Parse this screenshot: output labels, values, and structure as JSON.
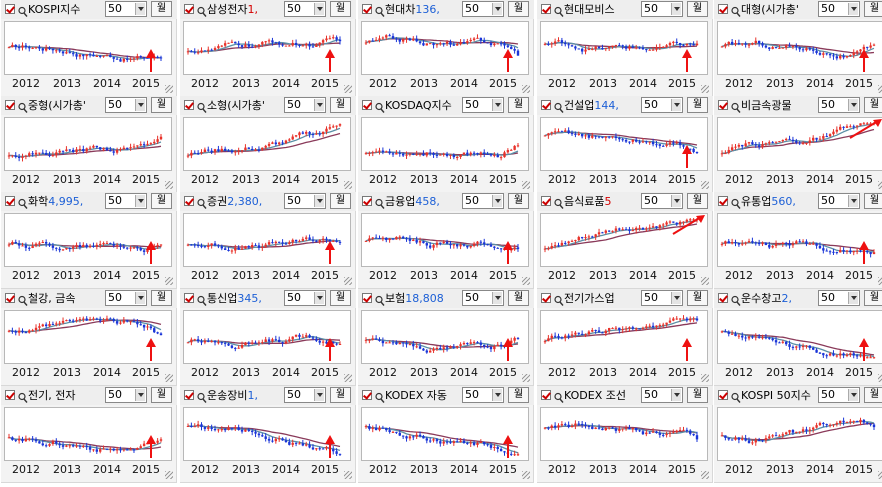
{
  "panels": [
    {
      "name": "KOSPI지수",
      "price": "",
      "price_color": "",
      "period": "50",
      "period_unit": "월",
      "trend": 0.1,
      "arrow": true
    },
    {
      "name": "삼성전자",
      "price": "1,",
      "price_color": "#d40000",
      "period": "50",
      "period_unit": "월",
      "trend": 0.1,
      "arrow": true
    },
    {
      "name": "현대차",
      "price": "136,",
      "price_color": "#1c5fd6",
      "period": "50",
      "period_unit": "월",
      "trend": -0.5,
      "arrow": true
    },
    {
      "name": "현대모비스",
      "price": "",
      "price_color": "",
      "period": "50",
      "period_unit": "월",
      "trend": -0.3,
      "arrow": true
    },
    {
      "name": "대형(시가총'",
      "price": "",
      "price_color": "",
      "period": "50",
      "period_unit": "월",
      "trend": 0.0,
      "arrow": true
    },
    {
      "name": "중형(시가총'",
      "price": "",
      "price_color": "",
      "period": "50",
      "period_unit": "월",
      "trend": 0.7,
      "arrow": false
    },
    {
      "name": "소형(시가총'",
      "price": "",
      "price_color": "",
      "period": "50",
      "period_unit": "월",
      "trend": 0.8,
      "arrow": false
    },
    {
      "name": "KOSDAQ지수",
      "price": "",
      "price_color": "",
      "period": "50",
      "period_unit": "월",
      "trend": 0.7,
      "arrow": false
    },
    {
      "name": "건설업",
      "price": "144,",
      "price_color": "#1c5fd6",
      "period": "50",
      "period_unit": "월",
      "trend": -0.6,
      "arrow": true
    },
    {
      "name": "비금속광물",
      "price": "",
      "price_color": "",
      "period": "50",
      "period_unit": "월",
      "trend": 0.9,
      "arrow": true
    },
    {
      "name": "화학",
      "price": "4,995,",
      "price_color": "#1c5fd6",
      "period": "50",
      "period_unit": "월",
      "trend": 0.2,
      "arrow": true
    },
    {
      "name": "증권",
      "price": "2,380,",
      "price_color": "#1c5fd6",
      "period": "50",
      "period_unit": "월",
      "trend": 0.3,
      "arrow": true
    },
    {
      "name": "금융업",
      "price": "458,",
      "price_color": "#1c5fd6",
      "period": "50",
      "period_unit": "월",
      "trend": 0.1,
      "arrow": true
    },
    {
      "name": "음식료품",
      "price": "5",
      "price_color": "#d40000",
      "period": "50",
      "period_unit": "월",
      "trend": 0.8,
      "arrow": true
    },
    {
      "name": "유통업",
      "price": "560,",
      "price_color": "#1c5fd6",
      "period": "50",
      "period_unit": "월",
      "trend": 0.1,
      "arrow": true
    },
    {
      "name": "철강, 금속",
      "price": "",
      "price_color": "",
      "period": "50",
      "period_unit": "월",
      "trend": -0.6,
      "arrow": true
    },
    {
      "name": "통신업",
      "price": "345,",
      "price_color": "#1c5fd6",
      "period": "50",
      "period_unit": "월",
      "trend": 0.4,
      "arrow": true
    },
    {
      "name": "보험",
      "price": "18,808",
      "price_color": "#1c5fd6",
      "period": "50",
      "period_unit": "월",
      "trend": 0.3,
      "arrow": true
    },
    {
      "name": "전기가스업",
      "price": "",
      "price_color": "",
      "period": "50",
      "period_unit": "월",
      "trend": 0.5,
      "arrow": true
    },
    {
      "name": "운수창고",
      "price": "2,",
      "price_color": "#1c5fd6",
      "period": "50",
      "period_unit": "월",
      "trend": -0.6,
      "arrow": true
    },
    {
      "name": "전기, 전자",
      "price": "",
      "price_color": "",
      "period": "50",
      "period_unit": "월",
      "trend": 0.2,
      "arrow": true
    },
    {
      "name": "운송장비",
      "price": "1,",
      "price_color": "#1c5fd6",
      "period": "50",
      "period_unit": "월",
      "trend": -0.6,
      "arrow": true
    },
    {
      "name": "KODEX 자동",
      "price": "",
      "price_color": "",
      "period": "50",
      "period_unit": "월",
      "trend": -0.5,
      "arrow": true
    },
    {
      "name": "KODEX 조선",
      "price": "",
      "price_color": "",
      "period": "50",
      "period_unit": "월",
      "trend": -0.7,
      "arrow": false
    },
    {
      "name": "KOSPI 50지수",
      "price": "",
      "price_color": "",
      "period": "50",
      "period_unit": "월",
      "trend": 0.0,
      "arrow": false
    }
  ],
  "years": [
    "2012",
    "2013",
    "2014",
    "2015"
  ],
  "colors": {
    "up": "#e8322a",
    "down": "#1a35d8",
    "ma_short": "#5a8fa6",
    "ma_long": "#8a3a5a",
    "arrow": "#ee1111"
  }
}
